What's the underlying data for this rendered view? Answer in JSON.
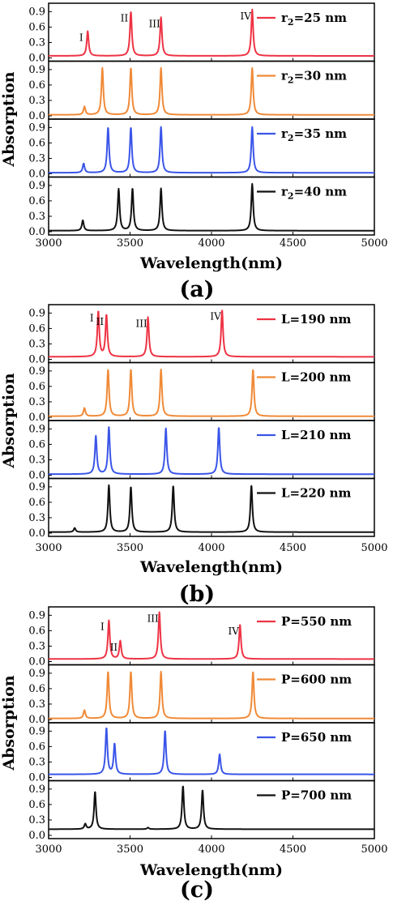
{
  "colors": {
    "red": "#ee3344",
    "orange": "#f08a38",
    "blue": "#3a55e8",
    "black": "#111111"
  },
  "chart_data": [
    {
      "type": "line",
      "panel_label": "(a)",
      "xlabel": "Wavelength(nm)",
      "ylabel": "Absorption",
      "xlim": [
        3000,
        5000
      ],
      "x_ticks": [
        "3000",
        "3500",
        "4000",
        "4500",
        "5000"
      ],
      "y_ticks": [
        "0.0",
        "0.3",
        "0.6",
        "0.9"
      ],
      "ylim": [
        0,
        1
      ],
      "subplots": [
        {
          "legend": "r2=25 nm",
          "legend_main": "r",
          "legend_sub": "2",
          "legend_rest": "=25 nm",
          "color": "red",
          "baseline": 0.04,
          "peaks": [
            {
              "x": 3240,
              "y": 0.52,
              "label": "I"
            },
            {
              "x": 3505,
              "y": 0.9,
              "label": "II"
            },
            {
              "x": 3690,
              "y": 0.79,
              "label": "III"
            },
            {
              "x": 4250,
              "y": 0.94,
              "label": "IV"
            }
          ]
        },
        {
          "legend": "r2=30 nm",
          "legend_main": "r",
          "legend_sub": "2",
          "legend_rest": "=30 nm",
          "color": "orange",
          "baseline": 0.02,
          "peaks": [
            {
              "x": 3220,
              "y": 0.18
            },
            {
              "x": 3330,
              "y": 0.93
            },
            {
              "x": 3505,
              "y": 0.93
            },
            {
              "x": 3690,
              "y": 0.93
            },
            {
              "x": 4250,
              "y": 0.93
            }
          ]
        },
        {
          "legend": "r2=35 nm",
          "legend_main": "r",
          "legend_sub": "2",
          "legend_rest": "=35 nm",
          "color": "blue",
          "baseline": 0.02,
          "peaks": [
            {
              "x": 3215,
              "y": 0.2
            },
            {
              "x": 3365,
              "y": 0.9
            },
            {
              "x": 3505,
              "y": 0.9
            },
            {
              "x": 3690,
              "y": 0.91
            },
            {
              "x": 4250,
              "y": 0.91
            }
          ]
        },
        {
          "legend": "r2=40 nm",
          "legend_main": "r",
          "legend_sub": "2",
          "legend_rest": "=40 nm",
          "color": "black",
          "baseline": 0.02,
          "peaks": [
            {
              "x": 3210,
              "y": 0.22
            },
            {
              "x": 3430,
              "y": 0.83
            },
            {
              "x": 3515,
              "y": 0.84
            },
            {
              "x": 3690,
              "y": 0.84
            },
            {
              "x": 4250,
              "y": 0.93
            }
          ]
        }
      ]
    },
    {
      "type": "line",
      "panel_label": "(b)",
      "xlabel": "Wavelength(nm)",
      "ylabel": "Absorption",
      "xlim": [
        3000,
        5000
      ],
      "x_ticks": [
        "3000",
        "3500",
        "4000",
        "4500",
        "5000"
      ],
      "y_ticks": [
        "0.0",
        "0.3",
        "0.6",
        "0.9"
      ],
      "ylim": [
        0,
        1
      ],
      "subplots": [
        {
          "legend": "L=190 nm",
          "color": "red",
          "baseline": 0.05,
          "peaks": [
            {
              "x": 3305,
              "y": 0.93,
              "label": "I"
            },
            {
              "x": 3355,
              "y": 0.86,
              "label": "II"
            },
            {
              "x": 3610,
              "y": 0.82,
              "label": "III"
            },
            {
              "x": 4065,
              "y": 0.96,
              "label": "IV"
            }
          ]
        },
        {
          "legend": "L=200 nm",
          "color": "orange",
          "baseline": 0.02,
          "peaks": [
            {
              "x": 3220,
              "y": 0.18
            },
            {
              "x": 3365,
              "y": 0.93
            },
            {
              "x": 3505,
              "y": 0.93
            },
            {
              "x": 3690,
              "y": 0.93
            },
            {
              "x": 4255,
              "y": 0.93
            }
          ]
        },
        {
          "legend": "L=210 nm",
          "color": "blue",
          "baseline": 0.02,
          "peaks": [
            {
              "x": 3290,
              "y": 0.76
            },
            {
              "x": 3370,
              "y": 0.93
            },
            {
              "x": 3720,
              "y": 0.91
            },
            {
              "x": 4045,
              "y": 0.93
            }
          ]
        },
        {
          "legend": "L=220 nm",
          "color": "black",
          "baseline": 0.02,
          "peaks": [
            {
              "x": 3160,
              "y": 0.1
            },
            {
              "x": 3370,
              "y": 0.93
            },
            {
              "x": 3505,
              "y": 0.9
            },
            {
              "x": 3765,
              "y": 0.92
            },
            {
              "x": 4245,
              "y": 0.93
            }
          ]
        }
      ]
    },
    {
      "type": "line",
      "panel_label": "(c)",
      "xlabel": "Wavelength(nm)",
      "ylabel": "Absorption",
      "xlim": [
        3000,
        5000
      ],
      "x_ticks": [
        "3000",
        "3500",
        "4000",
        "4500",
        "5000"
      ],
      "y_ticks": [
        "0.0",
        "0.3",
        "0.6",
        "0.9"
      ],
      "ylim": [
        0,
        1
      ],
      "subplots": [
        {
          "legend": "P=550 nm",
          "color": "red",
          "baseline": 0.05,
          "peaks": [
            {
              "x": 3370,
              "y": 0.8,
              "label": "I"
            },
            {
              "x": 3440,
              "y": 0.4,
              "label": "II"
            },
            {
              "x": 3680,
              "y": 0.96,
              "label": "III"
            },
            {
              "x": 4175,
              "y": 0.72,
              "label": "IV"
            }
          ]
        },
        {
          "legend": "P=600 nm",
          "color": "orange",
          "baseline": 0.02,
          "peaks": [
            {
              "x": 3220,
              "y": 0.18
            },
            {
              "x": 3365,
              "y": 0.93
            },
            {
              "x": 3505,
              "y": 0.93
            },
            {
              "x": 3690,
              "y": 0.93
            },
            {
              "x": 4255,
              "y": 0.93
            }
          ]
        },
        {
          "legend": "P=650 nm",
          "color": "blue",
          "baseline": 0.06,
          "peaks": [
            {
              "x": 3355,
              "y": 0.96
            },
            {
              "x": 3405,
              "y": 0.65
            },
            {
              "x": 3715,
              "y": 0.91
            },
            {
              "x": 4050,
              "y": 0.45
            }
          ]
        },
        {
          "legend": "P=700 nm",
          "color": "black",
          "baseline": 0.12,
          "peaks": [
            {
              "x": 3225,
              "y": 0.22
            },
            {
              "x": 3285,
              "y": 0.85
            },
            {
              "x": 3610,
              "y": 0.15
            },
            {
              "x": 3825,
              "y": 0.96
            },
            {
              "x": 3945,
              "y": 0.88
            }
          ]
        }
      ]
    }
  ]
}
